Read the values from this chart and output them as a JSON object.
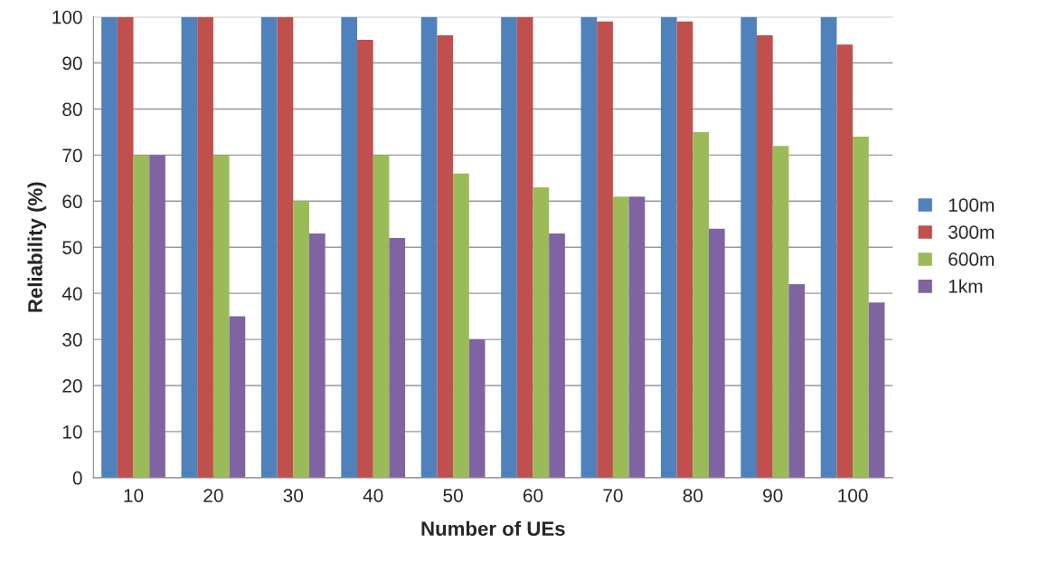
{
  "chart_data": {
    "type": "bar",
    "xlabel": "Number of UEs",
    "ylabel": "Reliability (%)",
    "categories": [
      "10",
      "20",
      "30",
      "40",
      "50",
      "60",
      "70",
      "80",
      "90",
      "100"
    ],
    "series": [
      {
        "name": "100m",
        "color": "#4f81bd",
        "values": [
          100,
          100,
          100,
          100,
          100,
          100,
          100,
          100,
          100,
          100
        ]
      },
      {
        "name": "300m",
        "color": "#c0504d",
        "values": [
          100,
          100,
          100,
          95,
          96,
          100,
          99,
          99,
          96,
          94
        ]
      },
      {
        "name": "600m",
        "color": "#9bbb59",
        "values": [
          70,
          70,
          60,
          70,
          66,
          63,
          61,
          75,
          72,
          74
        ]
      },
      {
        "name": "1km",
        "color": "#8064a2",
        "values": [
          70,
          35,
          53,
          52,
          30,
          53,
          61,
          54,
          42,
          38
        ]
      }
    ],
    "ylim": [
      0,
      100
    ],
    "yticks": [
      0,
      10,
      20,
      30,
      40,
      50,
      60,
      70,
      80,
      90,
      100
    ],
    "grid": "y",
    "legend": "right"
  }
}
